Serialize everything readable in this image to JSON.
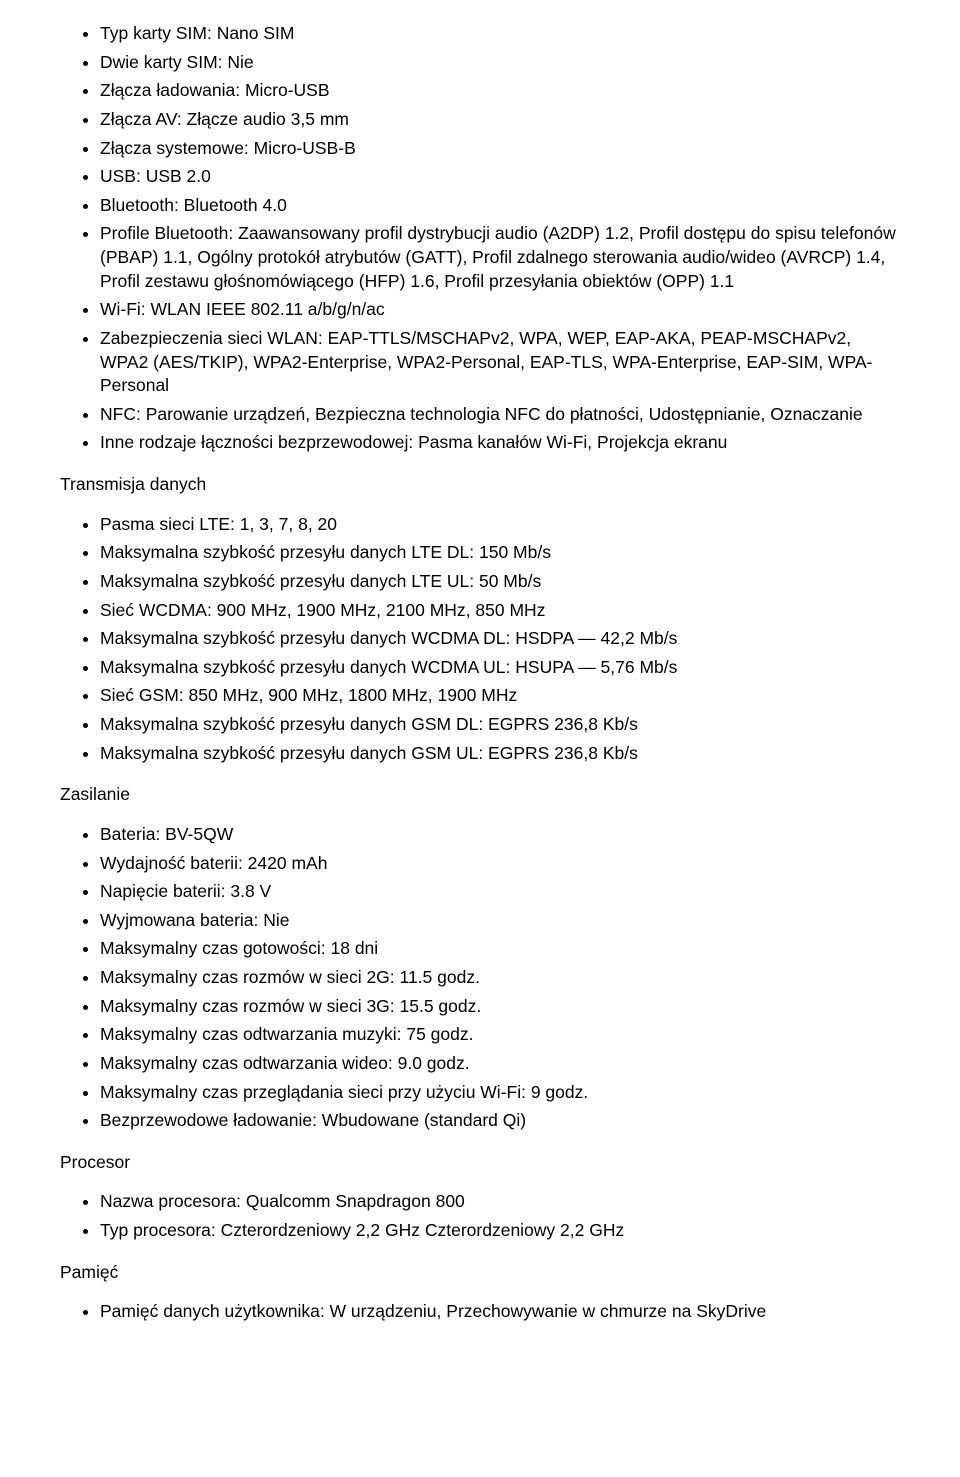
{
  "section1_items": [
    "Typ karty SIM: Nano SIM",
    "Dwie karty SIM: Nie",
    "Złącza ładowania: Micro-USB",
    "Złącza AV: Złącze audio 3,5 mm",
    "Złącza systemowe: Micro-USB-B",
    "USB: USB 2.0",
    "Bluetooth: Bluetooth 4.0",
    "Profile Bluetooth: Zaawansowany profil dystrybucji audio (A2DP) 1.2, Profil dostępu do spisu telefonów (PBAP) 1.1, Ogólny protokół atrybutów (GATT), Profil zdalnego sterowania audio/wideo (AVRCP) 1.4, Profil zestawu głośnomówiącego (HFP) 1.6, Profil przesyłania obiektów (OPP) 1.1",
    "Wi-Fi: WLAN IEEE 802.11 a/b/g/n/ac",
    "Zabezpieczenia sieci WLAN: EAP-TTLS/MSCHAPv2, WPA, WEP, EAP-AKA, PEAP-MSCHAPv2, WPA2 (AES/TKIP), WPA2-Enterprise, WPA2-Personal, EAP-TLS, WPA-Enterprise, EAP-SIM, WPA-Personal",
    "NFC: Parowanie urządzeń, Bezpieczna technologia NFC do płatności, Udostępnianie, Oznaczanie",
    "Inne rodzaje łączności bezprzewodowej: Pasma kanałów Wi-Fi, Projekcja ekranu"
  ],
  "heading_transmisja": "Transmisja danych",
  "transmisja_items": [
    "Pasma sieci LTE: 1, 3, 7, 8, 20",
    "Maksymalna szybkość przesyłu danych LTE DL: 150 Mb/s",
    "Maksymalna szybkość przesyłu danych LTE UL: 50 Mb/s",
    "Sieć WCDMA: 900 MHz, 1900 MHz, 2100 MHz, 850 MHz",
    "Maksymalna szybkość przesyłu danych WCDMA DL: HSDPA — 42,2 Mb/s",
    "Maksymalna szybkość przesyłu danych WCDMA UL: HSUPA — 5,76 Mb/s",
    "Sieć GSM: 850 MHz, 900 MHz, 1800 MHz, 1900 MHz",
    "Maksymalna szybkość przesyłu danych GSM DL: EGPRS 236,8 Kb/s",
    "Maksymalna szybkość przesyłu danych GSM UL: EGPRS 236,8 Kb/s"
  ],
  "heading_zasilanie": "Zasilanie",
  "zasilanie_items": [
    "Bateria: BV-5QW",
    "Wydajność baterii: 2420 mAh",
    "Napięcie baterii: 3.8 V",
    "Wyjmowana bateria: Nie",
    "Maksymalny czas gotowości: 18 dni",
    "Maksymalny czas rozmów w sieci 2G: 11.5 godz.",
    "Maksymalny czas rozmów w sieci 3G: 15.5 godz.",
    "Maksymalny czas odtwarzania muzyki: 75 godz.",
    "Maksymalny czas odtwarzania wideo: 9.0 godz.",
    "Maksymalny czas przeglądania sieci przy użyciu Wi-Fi: 9 godz.",
    "Bezprzewodowe ładowanie: Wbudowane (standard Qi)"
  ],
  "heading_procesor": "Procesor",
  "procesor_items": [
    "Nazwa procesora: Qualcomm Snapdragon 800",
    "Typ procesora: Czterordzeniowy 2,2 GHz Czterordzeniowy 2,2 GHz"
  ],
  "heading_pamiec": "Pamięć",
  "pamiec_items": [
    "Pamięć danych użytkownika: W urządzeniu, Przechowywanie w chmurze na SkyDrive"
  ]
}
